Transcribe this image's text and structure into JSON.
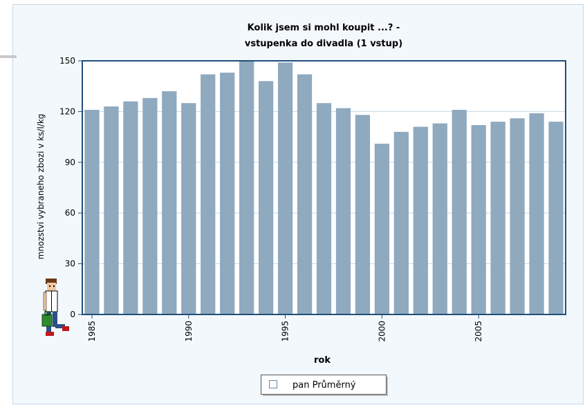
{
  "chart_data": {
    "type": "bar",
    "title_lines": [
      "Kolik jsem si  mohl koupit ...? -",
      "vstupenka do divadla (1 vstup)"
    ],
    "xlabel": "rok",
    "ylabel": "mnozstvi vybraneho zbozi v ks/l/kg",
    "ylim": [
      0,
      150
    ],
    "yticks": [
      0,
      30,
      60,
      90,
      120,
      150
    ],
    "xtick_labels": [
      "1985",
      "1990",
      "1995",
      "2000",
      "2005"
    ],
    "categories": [
      1985,
      1986,
      1987,
      1988,
      1989,
      1990,
      1991,
      1992,
      1993,
      1994,
      1995,
      1996,
      1997,
      1998,
      1999,
      2000,
      2001,
      2002,
      2003,
      2004,
      2005,
      2006,
      2007,
      2008,
      2009
    ],
    "values": [
      121,
      123,
      126,
      128,
      132,
      125,
      142,
      143,
      150,
      138,
      149,
      142,
      125,
      122,
      118,
      101,
      108,
      111,
      113,
      121,
      112,
      114,
      116,
      119,
      114
    ],
    "series_name": "pan Průměrný",
    "legend_position": "bottom",
    "grid": true,
    "colors": {
      "bar": "#8fa9bf",
      "plot_border": "#1f4e79",
      "grid": "#c9d6e3"
    }
  }
}
